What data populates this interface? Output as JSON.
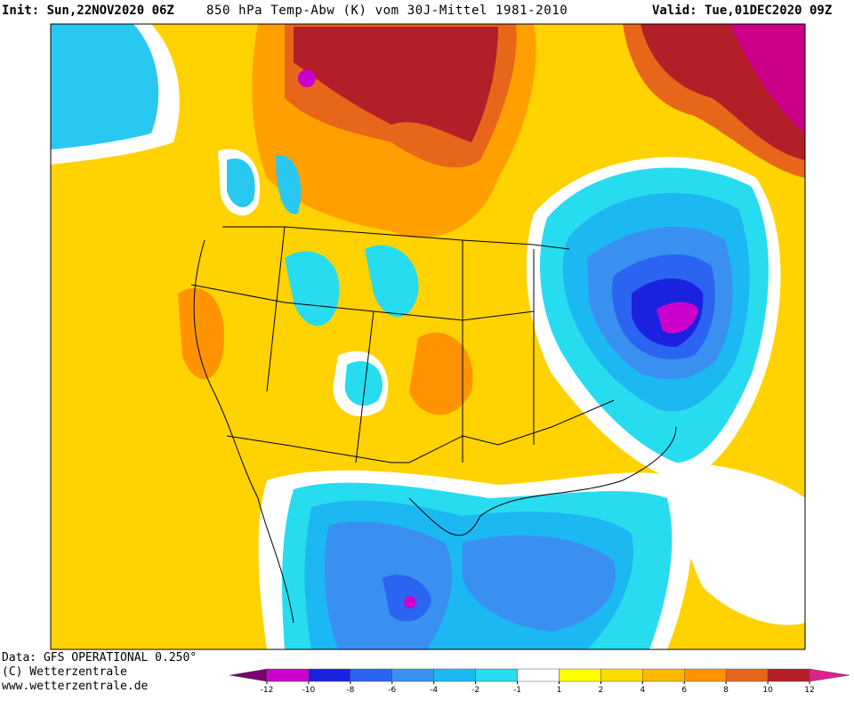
{
  "header": {
    "init": "Init: Sun,22NOV2020 06Z",
    "title": "850 hPa Temp-Abw (K) vom 30J-Mittel 1981-2010",
    "valid": "Valid: Tue,01DEC2020 09Z"
  },
  "footer": {
    "source": "Data: GFS OPERATIONAL 0.250°",
    "copyright": "(C) Wetterzentrale",
    "url": "www.wetterzentrale.de"
  },
  "legend": {
    "ticks": [
      -12,
      -10,
      -8,
      -6,
      -4,
      -2,
      -1,
      1,
      2,
      4,
      6,
      8,
      10,
      12
    ],
    "below_color": "#7a006e",
    "colors": [
      "#cc00cc",
      "#1a22e0",
      "#2a64f0",
      "#3a90f0",
      "#1cb8f2",
      "#28dcf0",
      "#ffffff",
      "#ffff00",
      "#ffdc00",
      "#ffb800",
      "#ff9400",
      "#e8661a",
      "#b41e28"
    ],
    "above_color": "#e0208c"
  }
}
